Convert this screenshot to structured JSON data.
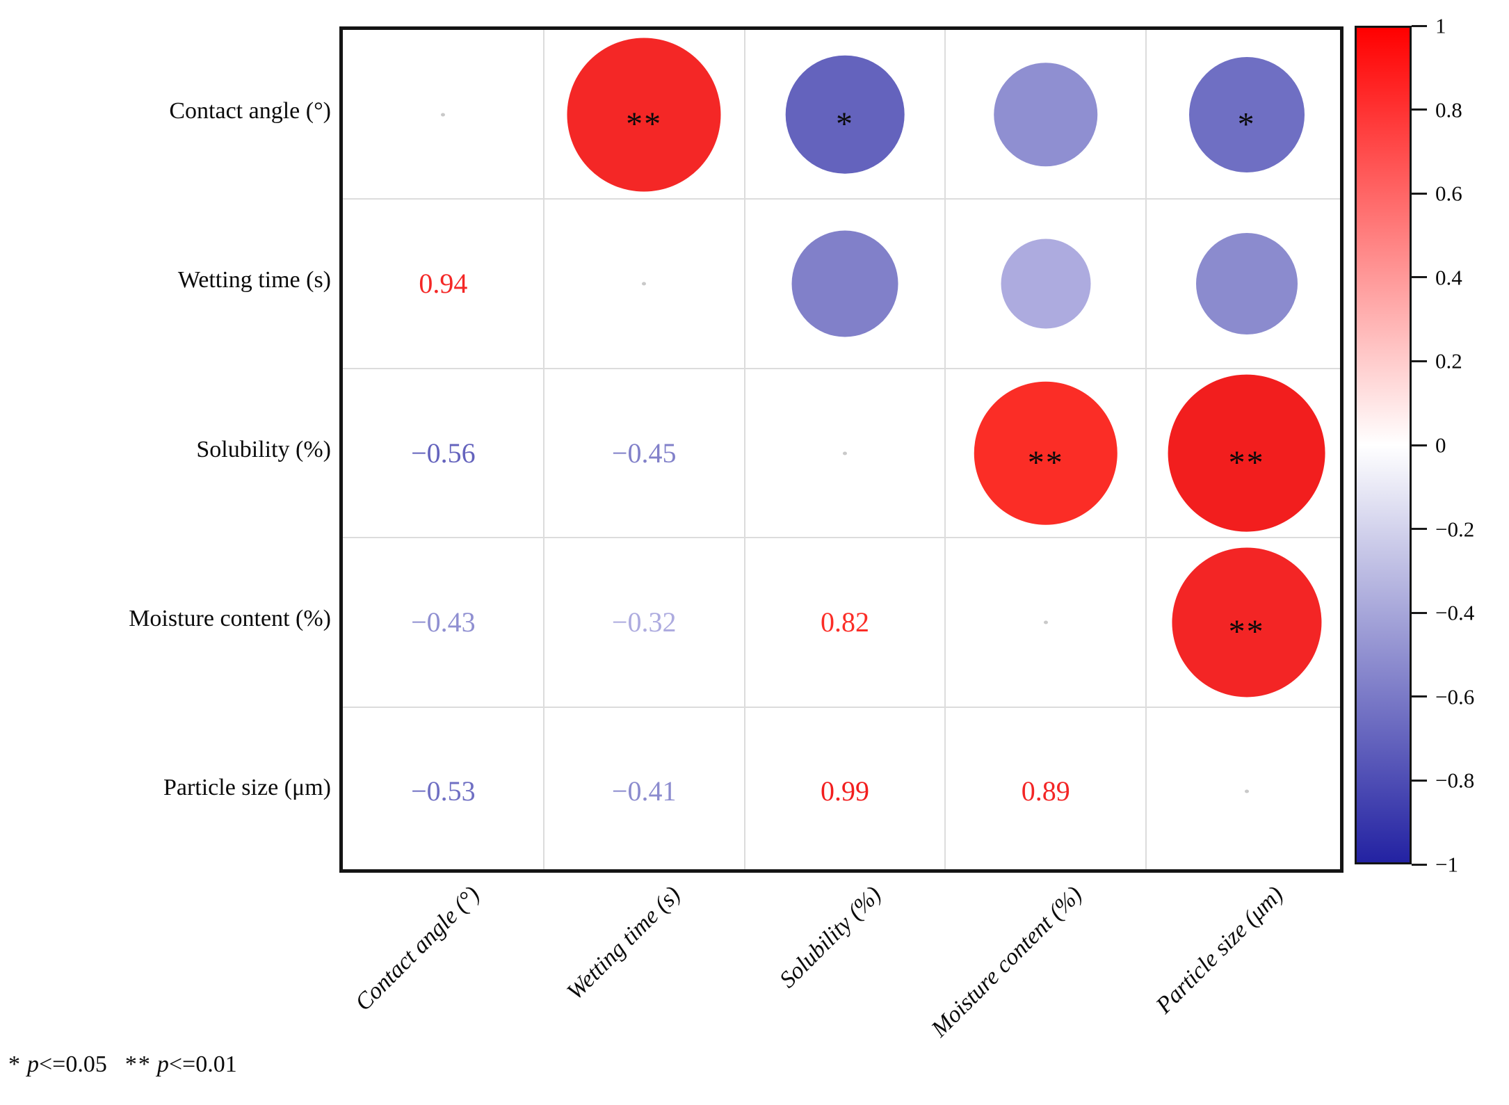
{
  "figure": {
    "footnote": {
      "star1": "*",
      "p1": "p<=0.05",
      "star2": "**",
      "p2": "p<=0.01"
    }
  },
  "chart_data": {
    "type": "heatmap",
    "subtype": "correlation-matrix-bubble",
    "layout": "circles-upper-triangle, coefficients-lower-triangle",
    "variables": [
      "Contact angle (°)",
      "Wetting time (s)",
      "Solubility (%)",
      "Moisture content (%)",
      "Particle size (μm)"
    ],
    "correlations": [
      {
        "row": 0,
        "col": 1,
        "var_a": "Contact angle (°)",
        "var_b": "Wetting time (s)",
        "r": 0.94,
        "display": "0.94",
        "significance": "**",
        "color": "#f42726"
      },
      {
        "row": 0,
        "col": 2,
        "var_a": "Contact angle (°)",
        "var_b": "Solubility (%)",
        "r": -0.56,
        "display": "−0.56",
        "significance": "*",
        "color": "#6463bd"
      },
      {
        "row": 0,
        "col": 3,
        "var_a": "Contact angle (°)",
        "var_b": "Moisture content (%)",
        "r": -0.43,
        "display": "−0.43",
        "significance": "",
        "color": "#8f8fd1"
      },
      {
        "row": 0,
        "col": 4,
        "var_a": "Contact angle (°)",
        "var_b": "Particle size (μm)",
        "r": -0.53,
        "display": "−0.53",
        "significance": "*",
        "color": "#6f6fc3"
      },
      {
        "row": 1,
        "col": 2,
        "var_a": "Wetting time (s)",
        "var_b": "Solubility (%)",
        "r": -0.45,
        "display": "−0.45",
        "significance": "",
        "color": "#8180c9"
      },
      {
        "row": 1,
        "col": 3,
        "var_a": "Wetting time (s)",
        "var_b": "Moisture content (%)",
        "r": -0.32,
        "display": "−0.32",
        "significance": "",
        "color": "#adabdf"
      },
      {
        "row": 1,
        "col": 4,
        "var_a": "Wetting time (s)",
        "var_b": "Particle size (μm)",
        "r": -0.41,
        "display": "−0.41",
        "significance": "",
        "color": "#8b8bce"
      },
      {
        "row": 2,
        "col": 3,
        "var_a": "Solubility (%)",
        "var_b": "Moisture content (%)",
        "r": 0.82,
        "display": "0.82",
        "significance": "**",
        "color": "#fb2d26"
      },
      {
        "row": 2,
        "col": 4,
        "var_a": "Solubility (%)",
        "var_b": "Particle size (μm)",
        "r": 0.99,
        "display": "0.99",
        "significance": "**",
        "color": "#f21e1e"
      },
      {
        "row": 3,
        "col": 4,
        "var_a": "Moisture content (%)",
        "var_b": "Particle size (μm)",
        "r": 0.89,
        "display": "0.89",
        "significance": "**",
        "color": "#f32525"
      }
    ],
    "colorbar": {
      "min": -1,
      "max": 1,
      "tick_labels": [
        "1",
        "0.8",
        "0.6",
        "0.4",
        "0.2",
        "0",
        "−0.2",
        "−0.4",
        "−0.6",
        "−0.8",
        "−1"
      ],
      "color_positive": "#ff0000",
      "color_zero": "#ffffff",
      "color_negative": "#2322a2"
    },
    "significance_note": "* p<=0.05  ** p<=0.01",
    "grid": true,
    "title": ""
  }
}
